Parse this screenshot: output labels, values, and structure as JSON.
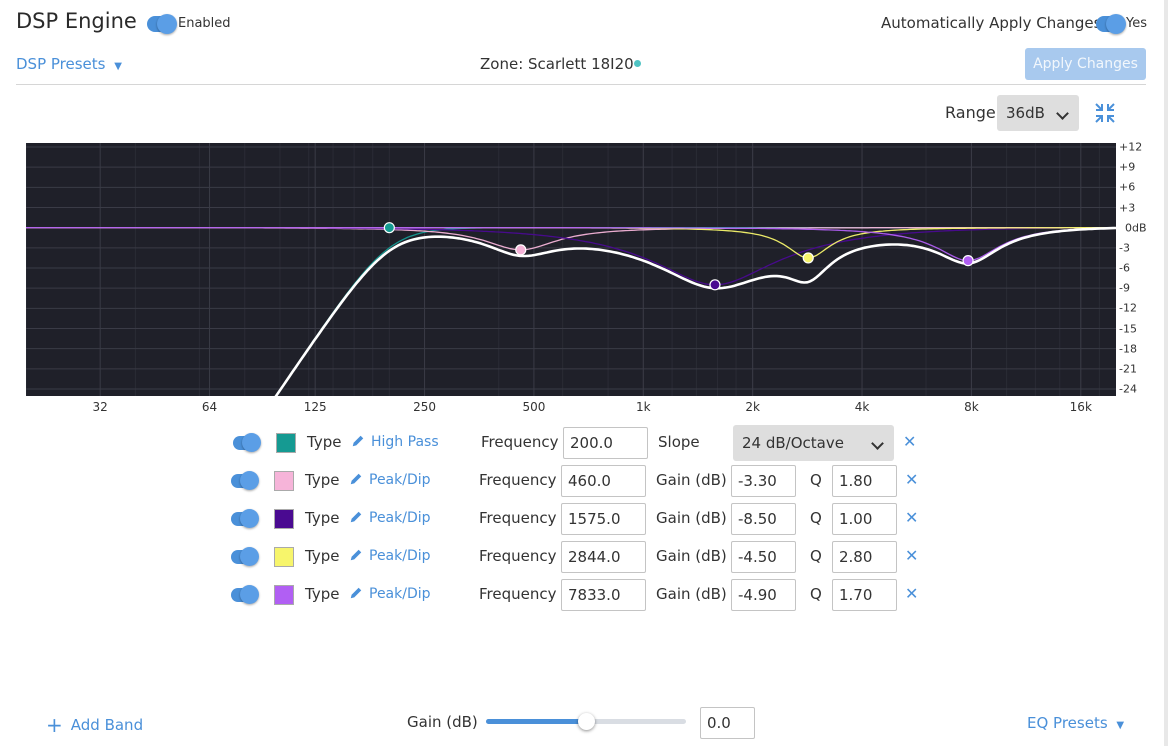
{
  "header": {
    "title": "DSP Engine",
    "enabled_label": "Enabled",
    "auto_apply_label": "Automatically Apply Changes",
    "auto_apply_value": "Yes"
  },
  "toolbar": {
    "presets_label": "DSP Presets",
    "zone_label": "Zone: Scarlett 18I20",
    "apply_label": "Apply Changes",
    "range_label": "Range:",
    "range_value": "36dB"
  },
  "colors": {
    "accent": "#4a90d9",
    "zone_dot": "#4fc3c3",
    "chart_bg": "#1f2029"
  },
  "chart_data": {
    "type": "line",
    "title": "",
    "xlabel": "",
    "ylabel": "",
    "x_scale": "log",
    "x_ticks": [
      "32",
      "64",
      "125",
      "250",
      "500",
      "1k",
      "2k",
      "4k",
      "8k",
      "16k"
    ],
    "y_ticks": [
      "+12",
      "+9",
      "+6",
      "+3",
      "0dB",
      "-3",
      "-6",
      "-9",
      "-12",
      "-15",
      "-18",
      "-21",
      "-24"
    ],
    "ylim": [
      -24,
      12
    ],
    "xlim": [
      20,
      20000
    ],
    "grid": true,
    "bands": [
      {
        "type": "High Pass",
        "color": "#159a92",
        "freq": 200.0,
        "slope": "24 dB/Octave"
      },
      {
        "type": "Peak/Dip",
        "color": "#f6b4d9",
        "freq": 460.0,
        "gain": -3.3,
        "q": 1.8
      },
      {
        "type": "Peak/Dip",
        "color": "#4a0a91",
        "freq": 1575.0,
        "gain": -8.5,
        "q": 1.0
      },
      {
        "type": "Peak/Dip",
        "color": "#f7f56b",
        "freq": 2844.0,
        "gain": -4.5,
        "q": 2.8
      },
      {
        "type": "Peak/Dip",
        "color": "#b15ff3",
        "freq": 7833.0,
        "gain": -4.9,
        "q": 1.7
      }
    ],
    "composite_color": "#ffffff"
  },
  "bands": [
    {
      "type_label": "Type",
      "type": "High Pass",
      "freq_label": "Frequency",
      "freq": "200.0",
      "slope_label": "Slope",
      "slope": "24 dB/Octave",
      "color": "#159a92"
    },
    {
      "type_label": "Type",
      "type": "Peak/Dip",
      "freq_label": "Frequency",
      "freq": "460.0",
      "gain_label": "Gain (dB)",
      "gain": "-3.30",
      "q_label": "Q",
      "q": "1.80",
      "color": "#f6b4d9"
    },
    {
      "type_label": "Type",
      "type": "Peak/Dip",
      "freq_label": "Frequency",
      "freq": "1575.0",
      "gain_label": "Gain (dB)",
      "gain": "-8.50",
      "q_label": "Q",
      "q": "1.00",
      "color": "#4a0a91"
    },
    {
      "type_label": "Type",
      "type": "Peak/Dip",
      "freq_label": "Frequency",
      "freq": "2844.0",
      "gain_label": "Gain (dB)",
      "gain": "-4.50",
      "q_label": "Q",
      "q": "2.80",
      "color": "#f7f56b"
    },
    {
      "type_label": "Type",
      "type": "Peak/Dip",
      "freq_label": "Frequency",
      "freq": "7833.0",
      "gain_label": "Gain (dB)",
      "gain": "-4.90",
      "q_label": "Q",
      "q": "1.70",
      "color": "#b15ff3"
    }
  ],
  "footer": {
    "add_band_label": "Add Band",
    "gain_label": "Gain (dB)",
    "gain_value": "0.0",
    "gain_fraction": 0.5,
    "eq_presets_label": "EQ Presets"
  }
}
